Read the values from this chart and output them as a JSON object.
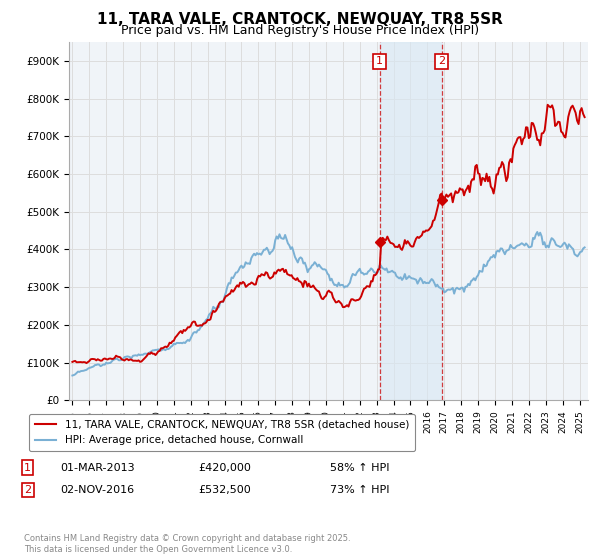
{
  "title": "11, TARA VALE, CRANTOCK, NEWQUAY, TR8 5SR",
  "subtitle": "Price paid vs. HM Land Registry's House Price Index (HPI)",
  "ylabel_ticks": [
    "£0",
    "£100K",
    "£200K",
    "£300K",
    "£400K",
    "£500K",
    "£600K",
    "£700K",
    "£800K",
    "£900K"
  ],
  "ytick_values": [
    0,
    100000,
    200000,
    300000,
    400000,
    500000,
    600000,
    700000,
    800000,
    900000
  ],
  "ylim": [
    0,
    950000
  ],
  "xlim_start": 1994.8,
  "xlim_end": 2025.5,
  "legend_line1": "11, TARA VALE, CRANTOCK, NEWQUAY, TR8 5SR (detached house)",
  "legend_line2": "HPI: Average price, detached house, Cornwall",
  "sale1_date": "01-MAR-2013",
  "sale1_price": "£420,000",
  "sale1_hpi": "58% ↑ HPI",
  "sale1_x": 2013.17,
  "sale1_y": 420000,
  "sale2_date": "02-NOV-2016",
  "sale2_price": "£532,500",
  "sale2_hpi": "73% ↑ HPI",
  "sale2_x": 2016.84,
  "sale2_y": 532500,
  "copyright_text": "Contains HM Land Registry data © Crown copyright and database right 2025.\nThis data is licensed under the Open Government Licence v3.0.",
  "red_color": "#cc0000",
  "blue_color": "#7ab0d4",
  "bg_color": "#ffffff",
  "plot_bg_color": "#f0f4f8",
  "grid_color": "#dddddd",
  "shade_color": "#d8e8f4",
  "title_fontsize": 11,
  "subtitle_fontsize": 9
}
